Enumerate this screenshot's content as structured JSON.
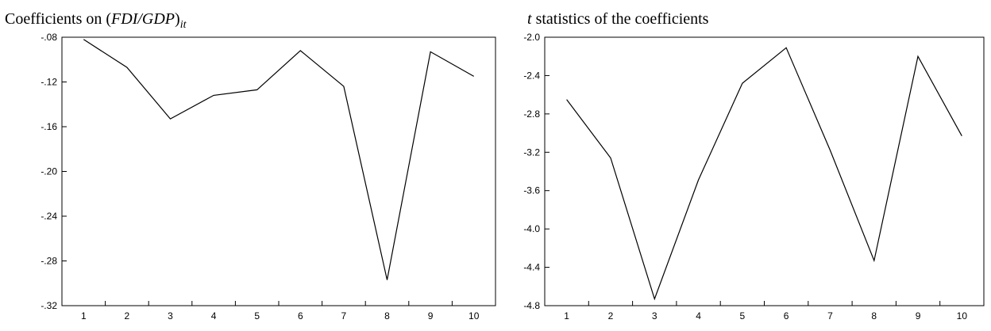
{
  "chart_data": [
    {
      "type": "line",
      "title": {
        "prefix": "Coefficients on (",
        "italic": "FDI/GDP",
        "suffix": ")",
        "subscript": "it"
      },
      "xlabel": "",
      "ylabel": "",
      "x": [
        1,
        2,
        3,
        4,
        5,
        6,
        7,
        8,
        9,
        10
      ],
      "x_tick_labels": [
        "1",
        "2",
        "3",
        "4",
        "5",
        "6",
        "7",
        "8",
        "9",
        "10"
      ],
      "y_tick_values": [
        -0.08,
        -0.12,
        -0.16,
        -0.2,
        -0.24,
        -0.28,
        -0.32
      ],
      "y_tick_labels": [
        "-.08",
        "-.12",
        "-.16",
        "-.20",
        "-.24",
        "-.28",
        "-.32"
      ],
      "ylim": [
        -0.32,
        -0.08
      ],
      "grid": false,
      "series": [
        {
          "values": [
            -0.082,
            -0.107,
            -0.153,
            -0.132,
            -0.127,
            -0.092,
            -0.124,
            -0.297,
            -0.093,
            -0.115
          ]
        }
      ]
    },
    {
      "type": "line",
      "title": {
        "prefix": "",
        "italic": "t",
        "suffix": " statistics of the coefficients",
        "subscript": ""
      },
      "xlabel": "",
      "ylabel": "",
      "x": [
        1,
        2,
        3,
        4,
        5,
        6,
        7,
        8,
        9,
        10
      ],
      "x_tick_labels": [
        "1",
        "2",
        "3",
        "4",
        "5",
        "6",
        "7",
        "8",
        "9",
        "10"
      ],
      "y_tick_values": [
        -2.0,
        -2.4,
        -2.8,
        -3.2,
        -3.6,
        -4.0,
        -4.4,
        -4.8
      ],
      "y_tick_labels": [
        "-2.0",
        "-2.4",
        "-2.8",
        "-3.2",
        "-3.6",
        "-4.0",
        "-4.4",
        "-4.8"
      ],
      "ylim": [
        -4.8,
        -2.0
      ],
      "grid": false,
      "series": [
        {
          "values": [
            -2.65,
            -3.26,
            -4.73,
            -3.49,
            -2.48,
            -2.11,
            -3.18,
            -4.33,
            -2.2,
            -3.03
          ]
        }
      ]
    }
  ]
}
